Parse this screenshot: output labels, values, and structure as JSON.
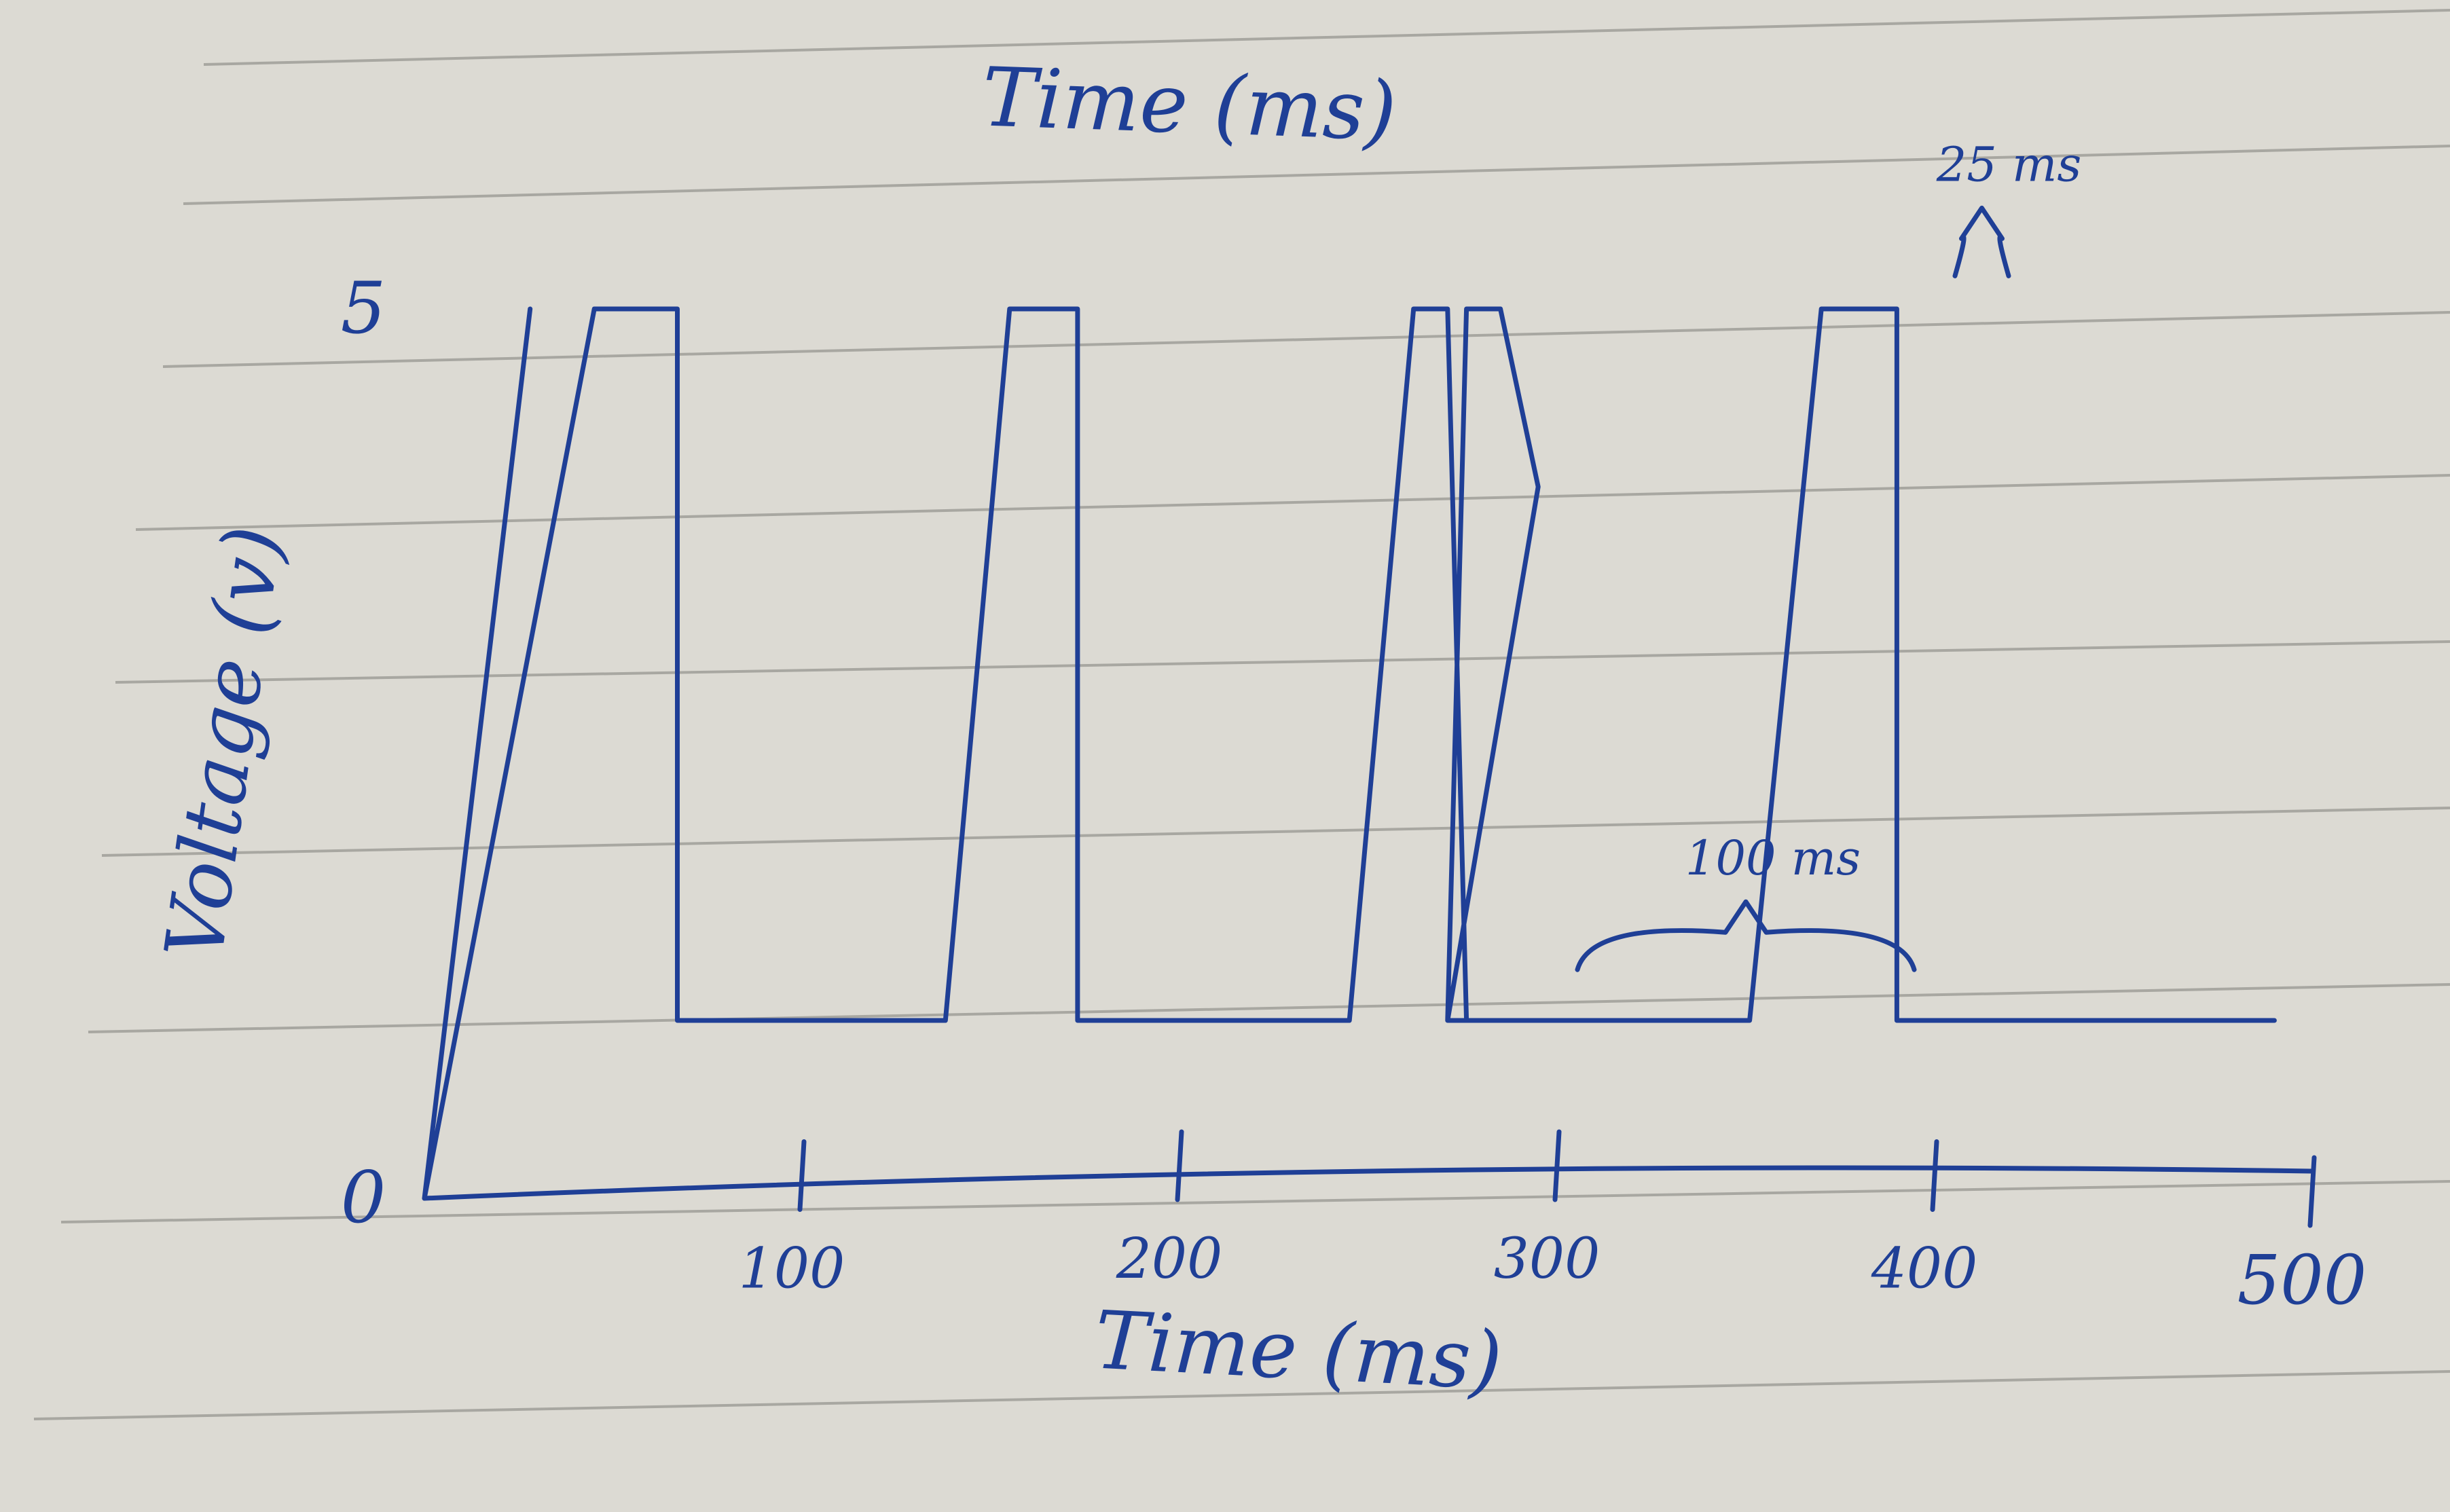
{
  "chart_data": {
    "type": "line",
    "title": "Time (ms)",
    "xlabel": "Time (ms)",
    "ylabel": "Voltage (v)",
    "x_ticks": [
      100,
      200,
      300,
      400,
      500
    ],
    "y_ticks": [
      0,
      5
    ],
    "xlim": [
      0,
      500
    ],
    "ylim": [
      0,
      5
    ],
    "low_level": 1,
    "grid": false,
    "annotations": [
      {
        "text": "100 ms",
        "x_start": 300,
        "x_end": 400,
        "y": 1.4
      },
      {
        "text": "25 ms",
        "x_start": 400,
        "x_end": 425,
        "y": 5.3
      }
    ],
    "series": [
      {
        "x": [
          0,
          28,
          0,
          45,
          67,
          67,
          138,
          155,
          173,
          173,
          245,
          262,
          271,
          276,
          271,
          276,
          285,
          295,
          271,
          271,
          351,
          370,
          390,
          390,
          490
        ],
        "y": [
          0,
          5,
          0,
          5,
          5,
          1,
          1,
          5,
          5,
          1,
          1,
          5,
          5,
          1,
          1,
          5,
          5,
          4,
          1,
          1,
          1,
          5,
          5,
          1,
          1
        ]
      }
    ],
    "paper": {
      "background": "#dcdad3",
      "rule_color": "#a8a7a1",
      "ink_color": "#1f3f96"
    }
  }
}
